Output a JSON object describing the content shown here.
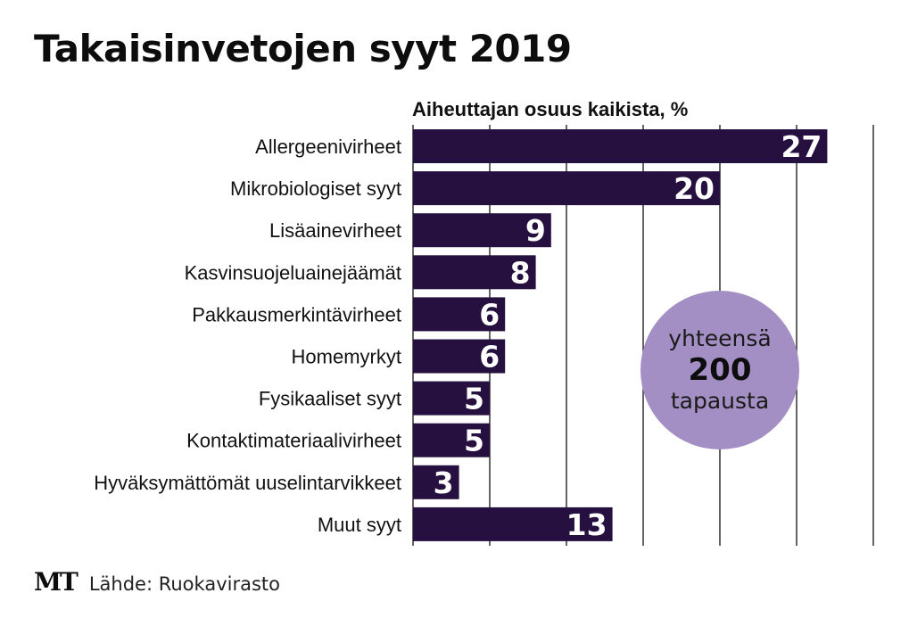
{
  "title": "Takaisinvetojen syyt 2019",
  "footer": {
    "logo": "MT",
    "source": "Lähde: Ruokavirasto"
  },
  "callout": {
    "line1": "yhteensä",
    "line2": "200",
    "line3": "tapausta"
  },
  "colors": {
    "bar": "#25103f",
    "bubble": "#a38fc4",
    "grid": "#111111",
    "value_text": "#ffffff"
  },
  "chart_data": {
    "type": "bar",
    "orientation": "horizontal",
    "title": "Takaisinvetojen syyt 2019",
    "xlabel": "Aiheuttajan osuus kaikista, %",
    "ylabel": "",
    "xlim": [
      0,
      30
    ],
    "grid": true,
    "categories": [
      "Allergeenivirheet",
      "Mikrobiologiset syyt",
      "Lisäainevirheet",
      "Kasvinsuojeluainejäämät",
      "Pakkausmerkintävirheet",
      "Homemyrkyt",
      "Fysikaaliset syyt",
      "Kontaktimateriaalivirheet",
      "Hyväksymättömät uuselintarvikkeet",
      "Muut syyt"
    ],
    "values": [
      27,
      20,
      9,
      8,
      6,
      6,
      5,
      5,
      3,
      13
    ]
  }
}
